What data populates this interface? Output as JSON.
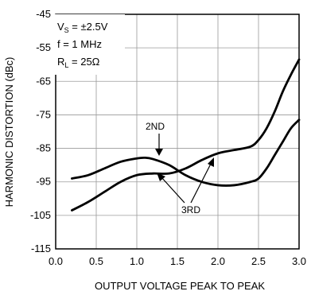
{
  "chart_data": {
    "type": "line",
    "title": "",
    "xlabel": "OUTPUT VOLTAGE PEAK TO PEAK",
    "ylabel": "HARMONIC DISTORTION (dBc)",
    "xlim": [
      0,
      3.0
    ],
    "ylim": [
      -115,
      -45
    ],
    "xticks": [
      0.0,
      0.5,
      1.0,
      1.5,
      2.0,
      2.5,
      3.0
    ],
    "xtick_labels": [
      "0.0",
      "0.5",
      "1.0",
      "1.5",
      "2.0",
      "2.5",
      "3.0"
    ],
    "yticks": [
      -45,
      -55,
      -65,
      -75,
      -85,
      -95,
      -105,
      -115
    ],
    "ytick_labels": [
      "-45",
      "-55",
      "-65",
      "-75",
      "-85",
      "-95",
      "-105",
      "-115"
    ],
    "grid": true,
    "legend": "none",
    "conditions": {
      "vs": {
        "prefix": "V",
        "sub": "S",
        "suffix": " = ±2.5V"
      },
      "f": "f = 1 MHz",
      "rl": {
        "prefix": "R",
        "sub": "L",
        "suffix": " = 25Ω"
      }
    },
    "annotations": {
      "second": "2ND",
      "third": "3RD"
    },
    "series": [
      {
        "id": "second",
        "x": [
          0.2,
          0.4,
          0.6,
          0.8,
          1.0,
          1.1,
          1.2,
          1.4,
          1.6,
          1.8,
          2.0,
          2.2,
          2.4,
          2.5,
          2.6,
          2.7,
          2.8,
          2.9,
          3.0
        ],
        "y": [
          -94,
          -93,
          -91,
          -89,
          -88,
          -87.8,
          -88.2,
          -90,
          -93,
          -95,
          -96,
          -96,
          -95,
          -94,
          -91,
          -87,
          -83,
          -79,
          -76.5
        ]
      },
      {
        "id": "third",
        "x": [
          0.2,
          0.4,
          0.6,
          0.8,
          1.0,
          1.2,
          1.4,
          1.6,
          1.8,
          2.0,
          2.2,
          2.4,
          2.5,
          2.6,
          2.7,
          2.8,
          2.9,
          3.0
        ],
        "y": [
          -103.5,
          -101,
          -98,
          -95,
          -93,
          -92.5,
          -92.5,
          -91,
          -88.5,
          -86.5,
          -85.5,
          -84.5,
          -82.5,
          -79,
          -74,
          -68,
          -63,
          -58.5
        ]
      }
    ]
  }
}
